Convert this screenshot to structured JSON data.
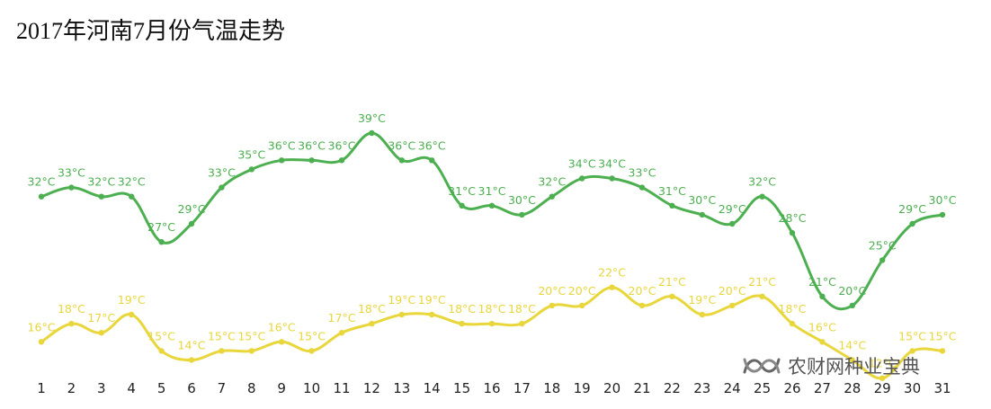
{
  "title": "2017年河南7月份气温走势",
  "watermark": {
    "text": "农财网种业宝典",
    "icon": "wechat-channel-icon"
  },
  "colors": {
    "high": "#4caf50",
    "low": "#e8d63a",
    "axis_text": "#222222"
  },
  "chart_data": {
    "type": "line",
    "title": "2017年河南7月份气温走势",
    "xlabel": "",
    "ylabel": "",
    "unit": "°C",
    "grid": false,
    "legend": "none",
    "x": [
      1,
      2,
      3,
      4,
      5,
      6,
      7,
      8,
      9,
      10,
      11,
      12,
      13,
      14,
      15,
      16,
      17,
      18,
      19,
      20,
      21,
      22,
      23,
      24,
      25,
      26,
      27,
      28,
      29,
      30,
      31
    ],
    "x_labels": [
      "1",
      "2",
      "3",
      "4",
      "5",
      "6",
      "7",
      "8",
      "9",
      "10",
      "11",
      "12",
      "13",
      "14",
      "15",
      "16",
      "17",
      "18",
      "19",
      "20",
      "21",
      "22",
      "23",
      "24",
      "25",
      "26",
      "27",
      "28",
      "29",
      "30",
      "31"
    ],
    "series": [
      {
        "values": [
          32,
          33,
          32,
          32,
          27,
          29,
          33,
          35,
          36,
          36,
          36,
          39,
          36,
          36,
          31,
          31,
          30,
          32,
          34,
          34,
          33,
          31,
          30,
          29,
          32,
          28,
          21,
          20,
          25,
          29,
          30
        ],
        "labels": [
          "32°C",
          "33°C",
          "32°C",
          "32°C",
          "27°C",
          "29°C",
          "33°C",
          "35°C",
          "36°C",
          "36°C",
          "36°C",
          "39°C",
          "36°C",
          "36°C",
          "31°C",
          "31°C",
          "30°C",
          "32°C",
          "34°C",
          "34°C",
          "33°C",
          "31°C",
          "30°C",
          "29°C",
          "32°C",
          "28°C",
          "21°C",
          "20°C",
          "25°C",
          "29°C",
          "30°C"
        ]
      },
      {
        "values": [
          16,
          18,
          17,
          19,
          15,
          14,
          15,
          15,
          16,
          15,
          17,
          18,
          19,
          19,
          18,
          18,
          18,
          20,
          20,
          22,
          20,
          21,
          19,
          20,
          21,
          18,
          16,
          14,
          12,
          15,
          15
        ],
        "labels": [
          "16°C",
          "18°C",
          "17°C",
          "19°C",
          "15°C",
          "14°C",
          "15°C",
          "15°C",
          "16°C",
          "15°C",
          "17°C",
          "18°C",
          "19°C",
          "19°C",
          "18°C",
          "18°C",
          "18°C",
          "20°C",
          "20°C",
          "22°C",
          "20°C",
          "21°C",
          "19°C",
          "20°C",
          "21°C",
          "18°C",
          "16°C",
          "14°C",
          "12°C",
          "15°C",
          "15°C"
        ]
      }
    ]
  }
}
